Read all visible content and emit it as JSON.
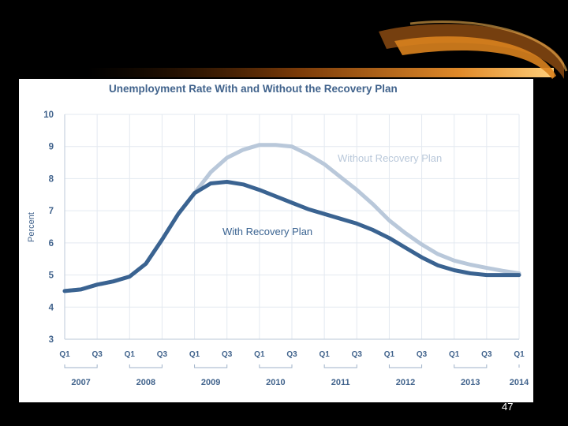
{
  "slide": {
    "number": "47"
  },
  "colors": {
    "with_plan": "#3a6391",
    "without_plan": "#b9c8da",
    "text": "#41638c",
    "grid": "#e3e9f0"
  },
  "chart_data": {
    "type": "line",
    "title": "Unemployment Rate With and Without the Recovery Plan",
    "ylabel": "Percent",
    "xlabel": "",
    "ylim": [
      3,
      10
    ],
    "yticks": [
      "3",
      "4",
      "5",
      "6",
      "7",
      "8",
      "9",
      "10"
    ],
    "quarter_ticks": [
      "Q1",
      "Q3",
      "Q1",
      "Q3",
      "Q1",
      "Q3",
      "Q1",
      "Q3",
      "Q1",
      "Q3",
      "Q1",
      "Q3",
      "Q1",
      "Q3",
      "Q1"
    ],
    "years": [
      "2007",
      "2008",
      "2009",
      "2010",
      "2011",
      "2012",
      "2013",
      "2014"
    ],
    "grid": true,
    "x": [
      "2007Q1",
      "2007Q2",
      "2007Q3",
      "2007Q4",
      "2008Q1",
      "2008Q2",
      "2008Q3",
      "2008Q4",
      "2009Q1",
      "2009Q2",
      "2009Q3",
      "2009Q4",
      "2010Q1",
      "2010Q2",
      "2010Q3",
      "2010Q4",
      "2011Q1",
      "2011Q2",
      "2011Q3",
      "2011Q4",
      "2012Q1",
      "2012Q2",
      "2012Q3",
      "2012Q4",
      "2013Q1",
      "2013Q2",
      "2013Q3",
      "2013Q4",
      "2014Q1"
    ],
    "series": [
      {
        "name": "Without Recovery Plan",
        "values": [
          4.5,
          4.55,
          4.7,
          4.8,
          4.95,
          5.35,
          6.1,
          6.9,
          7.55,
          8.2,
          8.65,
          8.9,
          9.05,
          9.05,
          9.0,
          8.75,
          8.45,
          8.05,
          7.65,
          7.2,
          6.7,
          6.3,
          5.95,
          5.65,
          5.45,
          5.32,
          5.22,
          5.13,
          5.05
        ]
      },
      {
        "name": "With Recovery Plan",
        "values": [
          4.5,
          4.55,
          4.7,
          4.8,
          4.95,
          5.35,
          6.1,
          6.9,
          7.55,
          7.85,
          7.9,
          7.82,
          7.65,
          7.45,
          7.25,
          7.05,
          6.9,
          6.75,
          6.6,
          6.4,
          6.15,
          5.85,
          5.55,
          5.3,
          5.15,
          5.05,
          5.0,
          5.0,
          5.0
        ]
      }
    ]
  }
}
